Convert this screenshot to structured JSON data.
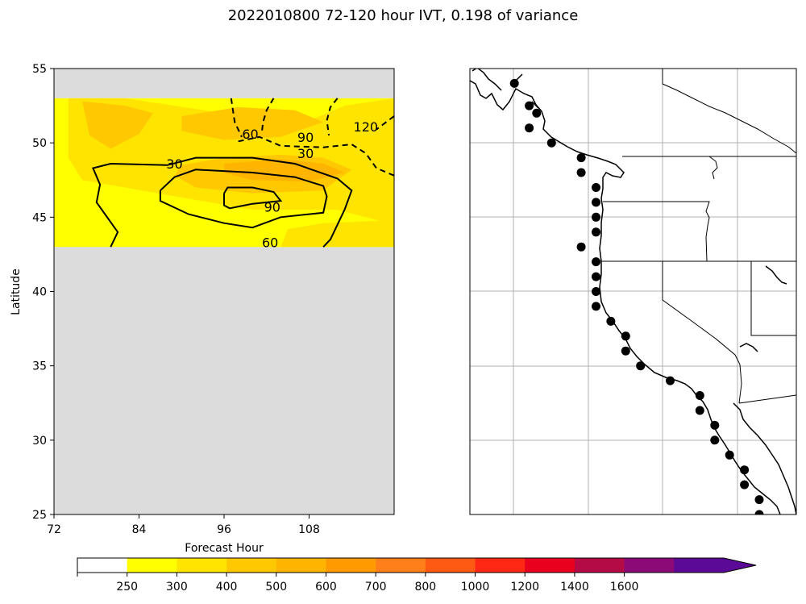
{
  "title": "2022010800 72-120 hour IVT, 0.198 of variance",
  "chart_data": [
    {
      "type": "contour",
      "xlabel": "Forecast Hour",
      "ylabel": "Latitude",
      "xlim": [
        72,
        120
      ],
      "ylim": [
        25,
        55
      ],
      "xticks": [
        72,
        84,
        96,
        108
      ],
      "yticks": [
        25,
        30,
        35,
        40,
        45,
        50,
        55
      ],
      "missing_color": "#dcdcdc",
      "valid_band": {
        "lat_min": 43,
        "lat_max": 53
      },
      "filled_regions": [
        {
          "level": 250,
          "polygon": [
            [
              72,
              53
            ],
            [
              120,
              53
            ],
            [
              120,
              43
            ],
            [
              72,
              43
            ]
          ]
        },
        {
          "level": 300,
          "polygon": [
            [
              74,
              53
            ],
            [
              82,
              53
            ],
            [
              96,
              52
            ],
            [
              108,
              51.5
            ],
            [
              113,
              52.5
            ],
            [
              120,
              53
            ],
            [
              120,
              44.5
            ],
            [
              112,
              45.5
            ],
            [
              100,
              45.5
            ],
            [
              88,
              46.5
            ],
            [
              76,
              47.5
            ],
            [
              74,
              49
            ]
          ]
        },
        {
          "level": 300,
          "polygon": [
            [
              105,
              44.2
            ],
            [
              110,
              44.6
            ],
            [
              120,
              44.8
            ],
            [
              120,
              43
            ],
            [
              104,
              43
            ]
          ]
        },
        {
          "level": 400,
          "polygon": [
            [
              90,
              48.5
            ],
            [
              96,
              49
            ],
            [
              104,
              49.2
            ],
            [
              110,
              49
            ],
            [
              114,
              48.2
            ],
            [
              110,
              46.8
            ],
            [
              100,
              46.6
            ],
            [
              92,
              47
            ],
            [
              89,
              47.8
            ]
          ]
        },
        {
          "level": 400,
          "polygon": [
            [
              76,
              52.8
            ],
            [
              82,
              52.5
            ],
            [
              86,
              52
            ],
            [
              84,
              50.6
            ],
            [
              80,
              49.6
            ],
            [
              77,
              50.5
            ]
          ]
        },
        {
          "level": 400,
          "polygon": [
            [
              90,
              51.8
            ],
            [
              98,
              52.4
            ],
            [
              106,
              52.2
            ],
            [
              110,
              51.4
            ],
            [
              104,
              50.4
            ],
            [
              96,
              50.2
            ],
            [
              90,
              50.8
            ]
          ]
        },
        {
          "level": 500,
          "polygon": [
            [
              96,
              48.6
            ],
            [
              104,
              48.9
            ],
            [
              110,
              48.6
            ],
            [
              113,
              48
            ],
            [
              108,
              47.4
            ],
            [
              100,
              47.5
            ],
            [
              96,
              48
            ]
          ]
        }
      ],
      "contours": [
        {
          "level": 30,
          "style": "solid",
          "points": [
            [
              80,
              43
            ],
            [
              81,
              44
            ],
            [
              78,
              46
            ],
            [
              78.5,
              47.2
            ],
            [
              77.5,
              48.3
            ],
            [
              80,
              48.6
            ],
            [
              88,
              48.5
            ],
            [
              92,
              49
            ],
            [
              100,
              49
            ],
            [
              106,
              48.6
            ],
            [
              112,
              47.6
            ],
            [
              114,
              46.8
            ],
            [
              113,
              45.5
            ],
            [
              112,
              44.5
            ],
            [
              111,
              43.5
            ],
            [
              110,
              43
            ]
          ]
        },
        {
          "level": 60,
          "style": "solid",
          "points": [
            [
              87,
              46.8
            ],
            [
              89,
              47.7
            ],
            [
              92,
              48.2
            ],
            [
              100,
              48
            ],
            [
              106,
              47.7
            ],
            [
              110,
              47.1
            ],
            [
              110.5,
              46.4
            ],
            [
              110,
              45.3
            ],
            [
              104,
              45
            ],
            [
              100,
              44.3
            ],
            [
              96,
              44.6
            ],
            [
              91,
              45.2
            ],
            [
              87,
              46.1
            ],
            [
              87,
              46.8
            ]
          ]
        },
        {
          "level": 90,
          "style": "solid",
          "points": [
            [
              96,
              46.6
            ],
            [
              96.5,
              47
            ],
            [
              100,
              47
            ],
            [
              103,
              46.7
            ],
            [
              104,
              46.1
            ],
            [
              100,
              45.9
            ],
            [
              96.8,
              45.6
            ],
            [
              96,
              45.8
            ],
            [
              96,
              46.6
            ]
          ]
        },
        {
          "level": 30,
          "style": "dashed",
          "points": [
            [
              98,
              50.1
            ],
            [
              101,
              50.4
            ],
            [
              104,
              49.8
            ],
            [
              110,
              49.7
            ],
            [
              114,
              49.9
            ],
            [
              116,
              49.3
            ],
            [
              117.5,
              48.3
            ],
            [
              120,
              47.8
            ]
          ]
        },
        {
          "level": 60,
          "style": "dashed",
          "points": [
            [
              97,
              53
            ],
            [
              97.5,
              51.4
            ],
            [
              98.5,
              50.4
            ]
          ]
        },
        {
          "level": 90,
          "style": "dashed",
          "points": [
            [
              103,
              53
            ],
            [
              102,
              52.2
            ],
            [
              101.5,
              51.4
            ],
            [
              101.3,
              50.6
            ]
          ]
        },
        {
          "level": 120,
          "style": "dashed",
          "points": [
            [
              112,
              53
            ],
            [
              111,
              52.4
            ],
            [
              110.5,
              51.5
            ],
            [
              110.8,
              50.5
            ]
          ]
        },
        {
          "level": 120,
          "style": "dashed",
          "points": [
            [
              120,
              51.8
            ],
            [
              117.5,
              50.9
            ]
          ]
        }
      ],
      "contour_labels": [
        {
          "text": "30",
          "x": 89,
          "y": 48.6
        },
        {
          "text": "60",
          "x": 102.5,
          "y": 43.3
        },
        {
          "text": "90",
          "x": 102.8,
          "y": 45.7
        },
        {
          "text": "60",
          "x": 99.7,
          "y": 50.6
        },
        {
          "text": "30",
          "x": 107.5,
          "y": 49.3
        },
        {
          "text": "90",
          "x": 107.5,
          "y": 50.4
        },
        {
          "text": "120",
          "x": 116,
          "y": 51.1
        }
      ]
    },
    {
      "type": "scatter",
      "lon_range": [
        -130,
        -108
      ],
      "lat_range": [
        25,
        55
      ],
      "marker_color": "#000000",
      "points": [
        [
          -127,
          54
        ],
        [
          -126,
          52.5
        ],
        [
          -125.5,
          52
        ],
        [
          -126,
          51
        ],
        [
          -124.5,
          50
        ],
        [
          -122.5,
          49
        ],
        [
          -122.5,
          48
        ],
        [
          -121.5,
          47
        ],
        [
          -121.5,
          46
        ],
        [
          -121.5,
          45
        ],
        [
          -121.5,
          44
        ],
        [
          -122.5,
          43
        ],
        [
          -121.5,
          42
        ],
        [
          -121.5,
          41
        ],
        [
          -121.5,
          40
        ],
        [
          -121.5,
          39
        ],
        [
          -120.5,
          38
        ],
        [
          -119.5,
          37
        ],
        [
          -119.5,
          36
        ],
        [
          -118.5,
          35
        ],
        [
          -116.5,
          34
        ],
        [
          -114.5,
          33
        ],
        [
          -114.5,
          32
        ],
        [
          -113.5,
          31
        ],
        [
          -113.5,
          30
        ],
        [
          -112.5,
          29
        ],
        [
          -111.5,
          28
        ],
        [
          -111.5,
          27
        ],
        [
          -110.5,
          26
        ],
        [
          -110.5,
          25
        ]
      ]
    },
    {
      "type": "colorbar",
      "boundaries": [
        0,
        250,
        300,
        400,
        500,
        600,
        700,
        800,
        1000,
        1200,
        1400,
        1600
      ],
      "tick_labels": [
        "250",
        "300",
        "400",
        "500",
        "600",
        "700",
        "800",
        "1000",
        "1200",
        "1400",
        "1600"
      ],
      "colors": [
        "#ffffff",
        "#ffff00",
        "#ffe400",
        "#ffc800",
        "#ffb400",
        "#ff9a00",
        "#ff7f1a",
        "#ff5a14",
        "#ff2814",
        "#e8001e",
        "#b40a46",
        "#8c0a78",
        "#5a0a96"
      ],
      "extend": "max"
    }
  ]
}
